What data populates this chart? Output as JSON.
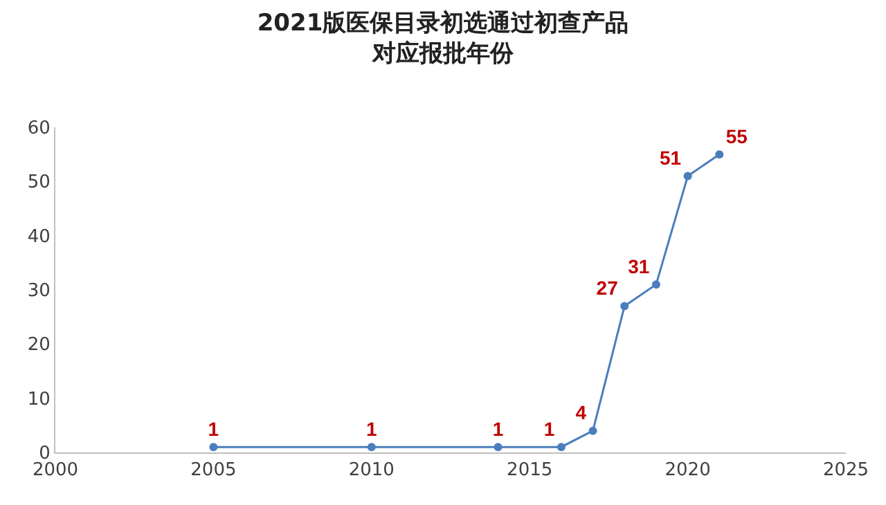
{
  "chart_data": {
    "type": "line",
    "title": "2021版医保目录初选通过初查产品对应报批年份",
    "x": [
      2005,
      2010,
      2014,
      2016,
      2017,
      2018,
      2019,
      2020,
      2021
    ],
    "series": [
      {
        "color": "#4a7ebb",
        "values": [
          1,
          1,
          1,
          1,
          4,
          27,
          31,
          51,
          55
        ]
      }
    ],
    "xlim": [
      2000,
      2025
    ],
    "xticks": [
      2000,
      2005,
      2010,
      2015,
      2020,
      2025
    ],
    "ylim": [
      0,
      60
    ],
    "yticks": [
      0,
      10,
      20,
      30,
      40,
      50,
      60
    ],
    "grid": false,
    "marker": "circle",
    "line_style": "solid",
    "data_labels": true
  }
}
